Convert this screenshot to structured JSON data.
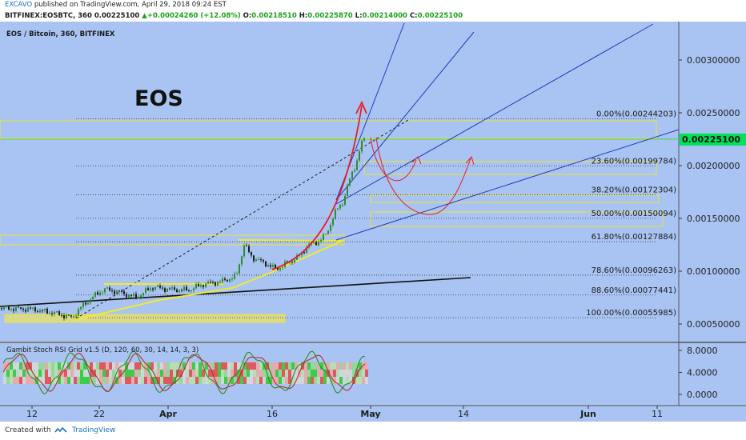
{
  "header": {
    "publisher": "EXCAVO",
    "published_text": " published on TradingView.com, April 29, 2018 09:24 EST",
    "symbol": "BITFINEX:EOSBTC, 360",
    "last": "0.00225100",
    "change": "+0.00024260 (+12.08%)",
    "open_label": "O:",
    "open": "0.00218510",
    "high_label": "H:",
    "high": "0.00225870",
    "low_label": "L:",
    "low": "0.00214000",
    "close_label": "C:",
    "close": "0.00225100"
  },
  "footer": {
    "created_label": "Created with",
    "brand": "TradingView"
  },
  "chart_data": {
    "type": "candlestick",
    "title": "EOS / Bitcoin, 360, BITFINEX",
    "annotation": "EOS",
    "colors": {
      "background": "#a9c4f2",
      "up": "#2e8b2e",
      "down": "#1b1b1b",
      "fib_line": "#333333",
      "yellow": "#f2ea2a",
      "red": "#e0202a",
      "blue": "#1f3bbf",
      "trend": "#111111",
      "last_price_bg": "#00e25a"
    },
    "x_axis": {
      "tick_labels": [
        "12",
        "22",
        "Apr",
        "16",
        "May",
        "14",
        "Jun",
        "11"
      ]
    },
    "y_axis": {
      "range": [
        0.0004,
        0.0034
      ],
      "tick_labels": [
        "0.00050000",
        "0.00100000",
        "0.00150000",
        "0.00200000",
        "0.00250000",
        "0.00300000"
      ],
      "tick_values": [
        0.0005,
        0.001,
        0.0015,
        0.002,
        0.0025,
        0.003
      ],
      "last_price": "0.00225100",
      "last_price_value": 0.002251
    },
    "fib_levels": [
      {
        "label": "0.00%(0.00244203)",
        "value": 0.00244203
      },
      {
        "label": "23.60%(0.00199784)",
        "value": 0.00199784
      },
      {
        "label": "38.20%(0.00172304)",
        "value": 0.00172304
      },
      {
        "label": "50.00%(0.00150094)",
        "value": 0.00150094
      },
      {
        "label": "61.80%(0.00127884)",
        "value": 0.00127884
      },
      {
        "label": "78.60%(0.00096263)",
        "value": 0.00096263
      },
      {
        "label": "88.60%(0.00077441)",
        "value": 0.00077441
      },
      {
        "label": "100.00%(0.00055985)",
        "value": 0.00055985
      }
    ],
    "price_path": [
      [
        0,
        0.00065
      ],
      [
        40,
        0.00064
      ],
      [
        70,
        0.0006
      ],
      [
        90,
        0.00056
      ],
      [
        100,
        0.00065
      ],
      [
        115,
        0.00075
      ],
      [
        130,
        0.00083
      ],
      [
        150,
        0.0008
      ],
      [
        170,
        0.00075
      ],
      [
        190,
        0.00085
      ],
      [
        210,
        0.00083
      ],
      [
        235,
        0.00082
      ],
      [
        255,
        0.00088
      ],
      [
        275,
        0.0009
      ],
      [
        295,
        0.00095
      ],
      [
        305,
        0.00125
      ],
      [
        315,
        0.00113
      ],
      [
        330,
        0.00108
      ],
      [
        345,
        0.00102
      ],
      [
        360,
        0.00108
      ],
      [
        375,
        0.00115
      ],
      [
        385,
        0.00125
      ],
      [
        395,
        0.00127
      ],
      [
        408,
        0.00135
      ],
      [
        418,
        0.00155
      ],
      [
        428,
        0.00165
      ],
      [
        436,
        0.00185
      ],
      [
        444,
        0.002
      ],
      [
        452,
        0.00222
      ],
      [
        456,
        0.00225
      ]
    ],
    "oscillator": {
      "title": "Gambit Stoch RSI Grid v1.5 (D, 120, 60, 30, 14, 14, 3, 3)",
      "tick_labels": [
        "8.0000",
        "4.0000",
        "0.0000"
      ],
      "tick_values": [
        8,
        4,
        0
      ],
      "range": [
        -1,
        9
      ]
    }
  }
}
